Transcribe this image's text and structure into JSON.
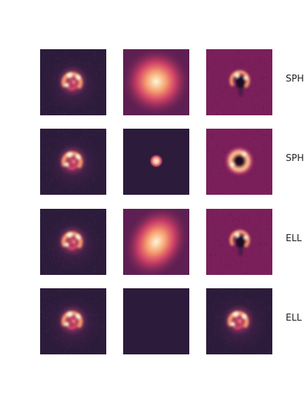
{
  "colors": {
    "background": "#2c1b3a",
    "residual_background": "#7a1f5a",
    "model_background": "#5e1f52",
    "core": "#fff6d6",
    "ring_hot": "#f59a6e",
    "ring_mid": "#e0456a",
    "void": "#1a0d26"
  },
  "rows": [
    {
      "label": "SPH",
      "model": "broad-blob",
      "residual": "void-center"
    },
    {
      "label": "SPH",
      "model": "compact-dot",
      "residual": "dark-core-ring"
    },
    {
      "label": "ELL",
      "model": "elliptical-blob",
      "residual": "void-center"
    },
    {
      "label": "ELL",
      "model": "empty",
      "residual": "ring-copy"
    }
  ]
}
